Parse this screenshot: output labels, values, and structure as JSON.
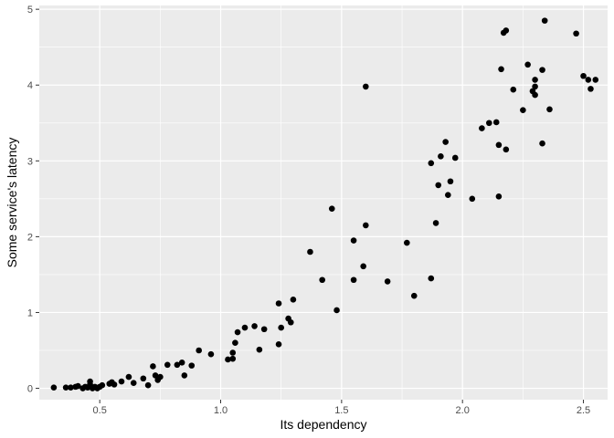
{
  "chart_data": {
    "type": "scatter",
    "title": "",
    "xlabel": "Its dependency",
    "ylabel": "Some service's latency",
    "xlim": [
      0.25,
      2.6
    ],
    "ylim": [
      -0.15,
      5.05
    ],
    "x_ticks": [
      0.5,
      1.0,
      1.5,
      2.0,
      2.5
    ],
    "x_tick_labels": [
      "0.5",
      "1.0",
      "1.5",
      "2.0",
      "2.5"
    ],
    "y_ticks": [
      0,
      1,
      2,
      3,
      4,
      5
    ],
    "y_tick_labels": [
      "0",
      "1",
      "2",
      "3",
      "4",
      "5"
    ],
    "grid": true,
    "colors": {
      "panel": "#ebebeb",
      "grid": "#ffffff",
      "point": "#000000"
    },
    "points": [
      [
        0.31,
        0.01
      ],
      [
        0.36,
        0.01
      ],
      [
        0.38,
        0.01
      ],
      [
        0.4,
        0.02
      ],
      [
        0.41,
        0.03
      ],
      [
        0.43,
        0.0
      ],
      [
        0.44,
        0.02
      ],
      [
        0.45,
        0.01
      ],
      [
        0.46,
        0.05
      ],
      [
        0.46,
        0.09
      ],
      [
        0.47,
        0.0
      ],
      [
        0.48,
        0.02
      ],
      [
        0.49,
        0.0
      ],
      [
        0.5,
        0.02
      ],
      [
        0.51,
        0.04
      ],
      [
        0.54,
        0.06
      ],
      [
        0.55,
        0.08
      ],
      [
        0.56,
        0.05
      ],
      [
        0.59,
        0.09
      ],
      [
        0.62,
        0.15
      ],
      [
        0.64,
        0.07
      ],
      [
        0.68,
        0.13
      ],
      [
        0.7,
        0.04
      ],
      [
        0.72,
        0.29
      ],
      [
        0.73,
        0.17
      ],
      [
        0.74,
        0.11
      ],
      [
        0.75,
        0.15
      ],
      [
        0.78,
        0.31
      ],
      [
        0.82,
        0.31
      ],
      [
        0.84,
        0.34
      ],
      [
        0.85,
        0.17
      ],
      [
        0.88,
        0.3
      ],
      [
        0.91,
        0.5
      ],
      [
        0.96,
        0.45
      ],
      [
        1.03,
        0.38
      ],
      [
        1.05,
        0.39
      ],
      [
        1.05,
        0.47
      ],
      [
        1.06,
        0.6
      ],
      [
        1.07,
        0.74
      ],
      [
        1.1,
        0.8
      ],
      [
        1.14,
        0.82
      ],
      [
        1.16,
        0.51
      ],
      [
        1.18,
        0.78
      ],
      [
        1.24,
        0.58
      ],
      [
        1.24,
        1.12
      ],
      [
        1.25,
        0.8
      ],
      [
        1.28,
        0.92
      ],
      [
        1.29,
        0.87
      ],
      [
        1.3,
        1.17
      ],
      [
        1.37,
        1.8
      ],
      [
        1.42,
        1.43
      ],
      [
        1.46,
        2.37
      ],
      [
        1.48,
        1.03
      ],
      [
        1.55,
        1.95
      ],
      [
        1.55,
        1.43
      ],
      [
        1.59,
        1.61
      ],
      [
        1.6,
        2.15
      ],
      [
        1.6,
        3.98
      ],
      [
        1.69,
        1.41
      ],
      [
        1.77,
        1.92
      ],
      [
        1.8,
        1.22
      ],
      [
        1.87,
        1.45
      ],
      [
        1.87,
        2.97
      ],
      [
        1.89,
        2.18
      ],
      [
        1.9,
        2.68
      ],
      [
        1.91,
        3.06
      ],
      [
        1.93,
        3.25
      ],
      [
        1.94,
        2.55
      ],
      [
        1.95,
        2.73
      ],
      [
        1.97,
        3.04
      ],
      [
        2.04,
        2.5
      ],
      [
        2.08,
        3.43
      ],
      [
        2.11,
        3.5
      ],
      [
        2.14,
        3.51
      ],
      [
        2.15,
        3.21
      ],
      [
        2.15,
        2.53
      ],
      [
        2.16,
        4.21
      ],
      [
        2.17,
        4.69
      ],
      [
        2.18,
        4.72
      ],
      [
        2.18,
        3.15
      ],
      [
        2.21,
        3.94
      ],
      [
        2.25,
        3.67
      ],
      [
        2.27,
        4.27
      ],
      [
        2.29,
        3.92
      ],
      [
        2.3,
        4.07
      ],
      [
        2.3,
        3.87
      ],
      [
        2.3,
        3.98
      ],
      [
        2.33,
        4.2
      ],
      [
        2.33,
        3.23
      ],
      [
        2.34,
        4.85
      ],
      [
        2.36,
        3.68
      ],
      [
        2.47,
        4.68
      ],
      [
        2.5,
        4.12
      ],
      [
        2.52,
        4.07
      ],
      [
        2.53,
        3.95
      ],
      [
        2.55,
        4.07
      ]
    ]
  }
}
